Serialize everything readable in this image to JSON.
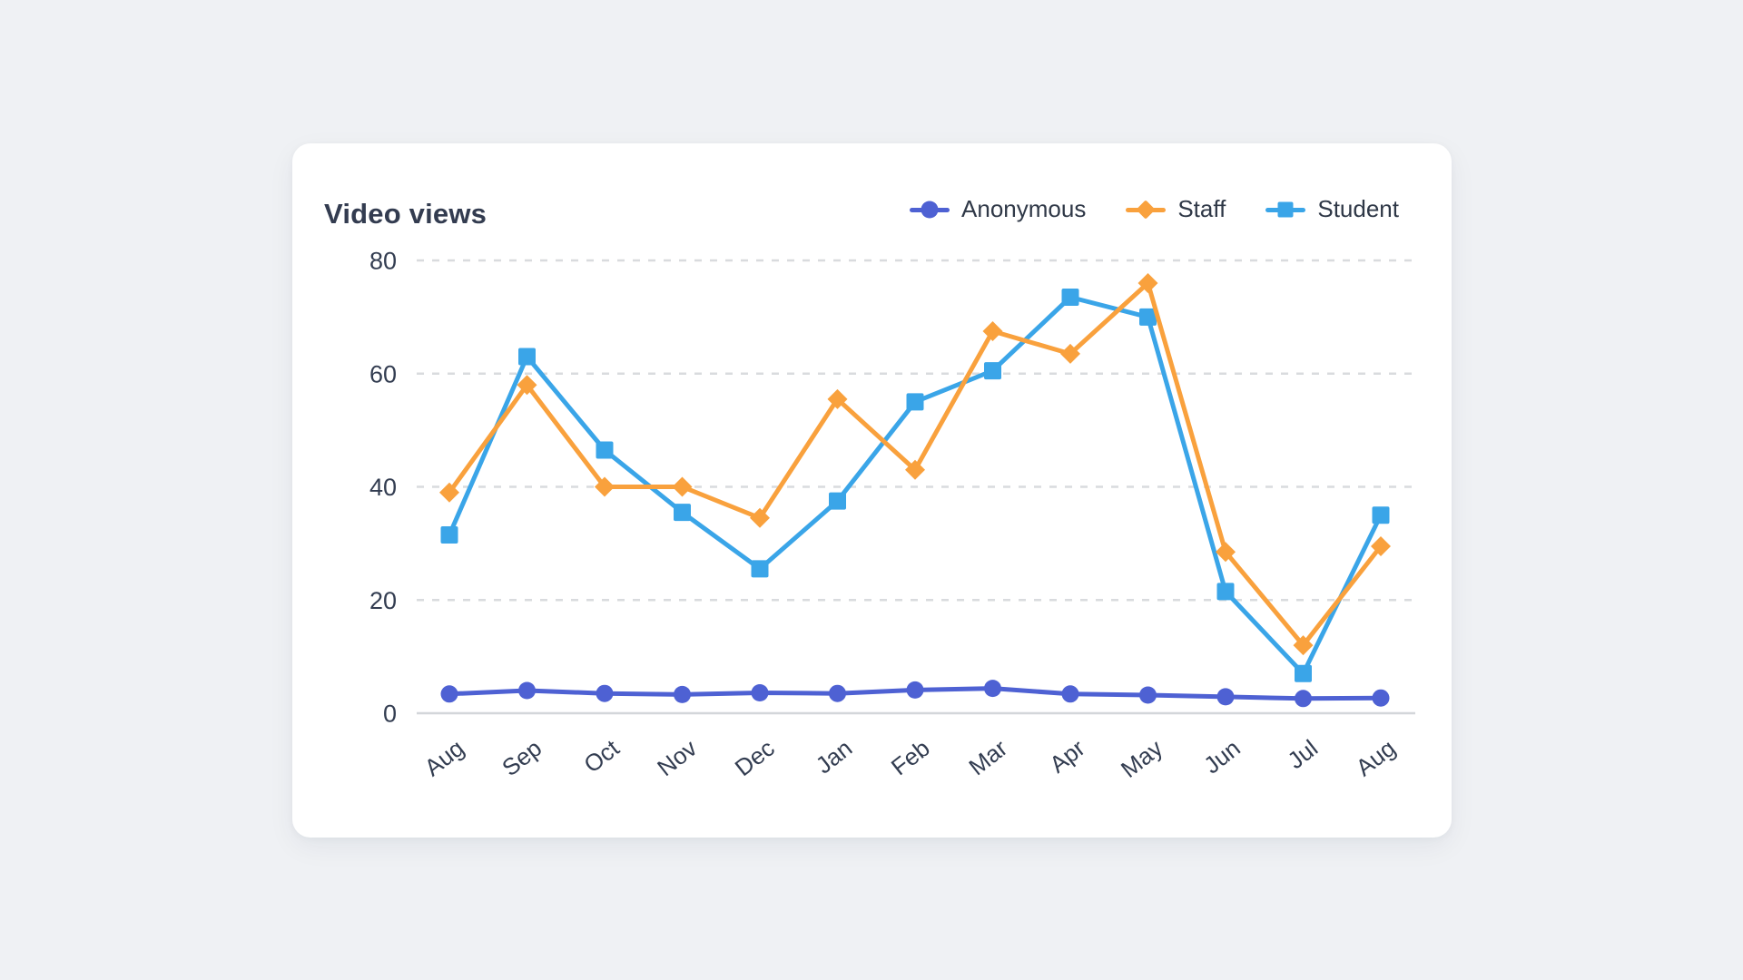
{
  "page": {
    "background": "#eff1f4"
  },
  "card": {
    "title": "Video views"
  },
  "chart_data": {
    "type": "line",
    "title": "Video views",
    "categories": [
      "Aug",
      "Sep",
      "Oct",
      "Nov",
      "Dec",
      "Jan",
      "Feb",
      "Mar",
      "Apr",
      "May",
      "Jun",
      "Jul",
      "Aug"
    ],
    "series": [
      {
        "name": "Anonymous",
        "marker": "circle",
        "color": "#4E61D3",
        "values": [
          3.4,
          4.0,
          3.5,
          3.3,
          3.6,
          3.5,
          4.1,
          4.4,
          3.4,
          3.2,
          2.9,
          2.6,
          2.7
        ]
      },
      {
        "name": "Staff",
        "marker": "diamond",
        "color": "#F9A13D",
        "values": [
          39,
          58,
          40,
          40,
          34.5,
          55.5,
          43,
          67.5,
          63.5,
          76,
          28.5,
          12,
          29.5
        ]
      },
      {
        "name": "Student",
        "marker": "square",
        "color": "#3AA5E8",
        "values": [
          31.5,
          63,
          46.5,
          35.5,
          25.5,
          37.5,
          55,
          60.5,
          73.5,
          70,
          21.5,
          7,
          35
        ]
      }
    ],
    "y_ticks": [
      0,
      20,
      40,
      60,
      80
    ],
    "ylim": [
      0,
      80
    ],
    "grid": "horizontal-dashed",
    "legend_position": "top-right",
    "axis_colors": {
      "gridline": "#d9dbde",
      "baseline": "#d3d6da",
      "tick_text": "#333D51"
    }
  }
}
